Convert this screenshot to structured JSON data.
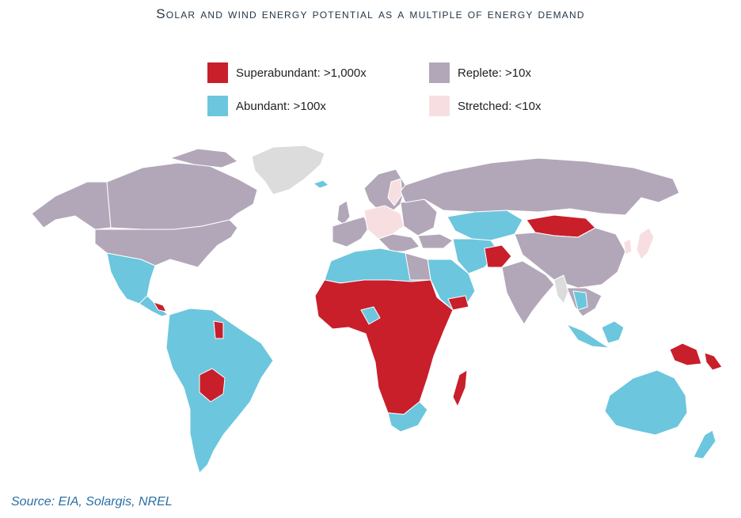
{
  "title": "Solar and wind energy potential as a multiple of energy demand",
  "legend": {
    "superabundant": {
      "label": "Superabundant: >1,000x",
      "color": "#c81f2b"
    },
    "replete": {
      "label": "Replete: >10x",
      "color": "#b2a7b8"
    },
    "abundant": {
      "label": "Abundant: >100x",
      "color": "#6cc6de"
    },
    "stretched": {
      "label": "Stretched: <10x",
      "color": "#f7dfe1"
    }
  },
  "colors": {
    "nodata": "#dcdcdc",
    "border": "#ffffff"
  },
  "source": "Source:  EIA, Solargis, NREL"
}
